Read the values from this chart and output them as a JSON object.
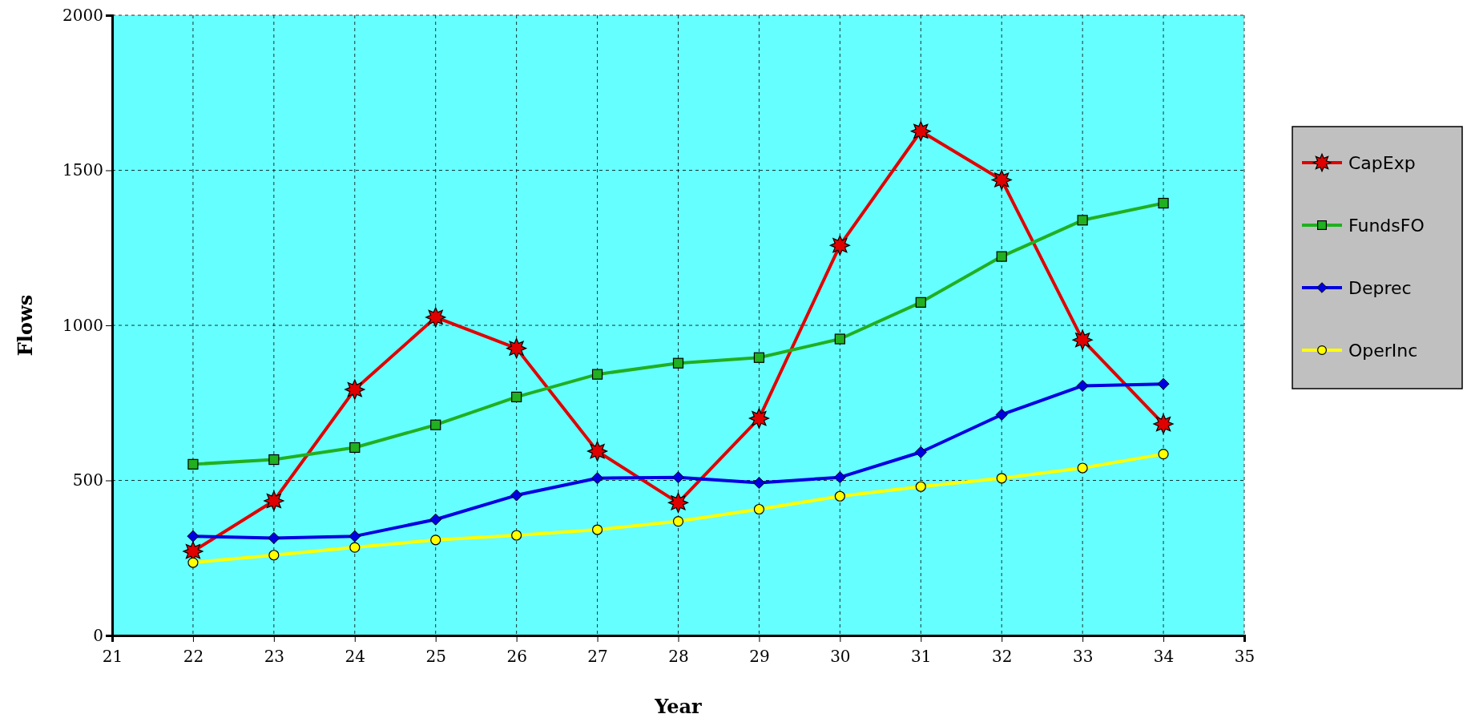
{
  "chart_data": {
    "type": "line",
    "xlabel": "Year",
    "ylabel": "Flows",
    "x": [
      22,
      23,
      24,
      25,
      26,
      27,
      28,
      29,
      30,
      31,
      32,
      33,
      34
    ],
    "xlim": [
      21,
      35
    ],
    "xticks": [
      21,
      22,
      23,
      24,
      25,
      26,
      27,
      28,
      29,
      30,
      31,
      32,
      33,
      34,
      35
    ],
    "ylim": [
      0,
      2000
    ],
    "yticks": [
      0,
      500,
      1000,
      1500,
      2000
    ],
    "grid": true,
    "legend": "right",
    "line_style": "solid",
    "series": [
      {
        "name": "CapExp",
        "color": "#e00000",
        "marker": "star",
        "values": [
          271,
          434,
          793,
          1026,
          926,
          594,
          428,
          700,
          1258,
          1626,
          1469,
          953,
          682
        ]
      },
      {
        "name": "FundsFO",
        "color": "#20b020",
        "marker": "square",
        "values": [
          552,
          567,
          606,
          679,
          769,
          842,
          878,
          896,
          956,
          1074,
          1222,
          1339,
          1394
        ]
      },
      {
        "name": "Deprec",
        "color": "#0000e0",
        "marker": "diamond",
        "values": [
          320,
          314,
          320,
          374,
          452,
          507,
          510,
          492,
          510,
          591,
          712,
          805,
          811
        ]
      },
      {
        "name": "OperInc",
        "color": "#ffff00",
        "marker": "circle",
        "values": [
          235,
          259,
          284,
          308,
          323,
          341,
          368,
          407,
          449,
          480,
          507,
          540,
          585
        ]
      }
    ]
  }
}
